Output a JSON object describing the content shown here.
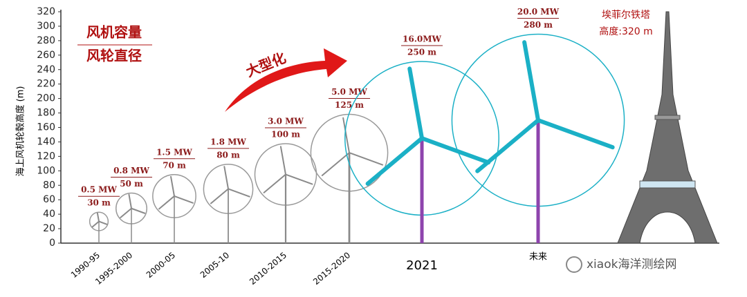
{
  "chart_data": {
    "type": "turbine",
    "y_label": "海上风机轮毂高度 (m)",
    "ylim": [
      0,
      320
    ],
    "yticks": [
      0,
      20,
      40,
      60,
      80,
      100,
      120,
      140,
      160,
      180,
      200,
      220,
      240,
      260,
      280,
      300,
      320
    ],
    "legend_lines": [
      "风机容量",
      "风轮直径"
    ],
    "trend_label": "大型化",
    "categories": [
      "1990-95",
      "1995-2000",
      "2000-05",
      "2005-10",
      "2010-2015",
      "2015-2020",
      "2021",
      "未来"
    ],
    "hub_height": [
      30,
      48,
      65,
      75,
      95,
      125,
      145,
      170
    ],
    "rotor_diameter": {
      "values": [
        30,
        50,
        70,
        80,
        100,
        125,
        250,
        280
      ],
      "value_labels": [
        "30 m",
        "50 m",
        "70 m",
        "80 m",
        "100 m",
        "125 m",
        "250 m",
        "280 m"
      ]
    },
    "capacity": {
      "values": [
        0.5,
        0.8,
        1.5,
        1.8,
        3.0,
        5.0,
        16.0,
        20.0
      ],
      "value_labels": [
        "0.5 MW",
        "0.8 MW",
        "1.5 MW",
        "1.8 MW",
        "3.0 MW",
        "5.0 MW",
        "16.0MW",
        "20.0 MW"
      ]
    },
    "colors": {
      "old": "#8a8a8a",
      "new_blade": "#1bb0c6",
      "new_tower": "#8e44ad",
      "label": "#8b1a1a"
    },
    "reference": {
      "name": "埃菲尔铁塔",
      "height_label": "高度:320 m",
      "value": 320
    },
    "watermark": "xiaok海洋测绘网"
  }
}
